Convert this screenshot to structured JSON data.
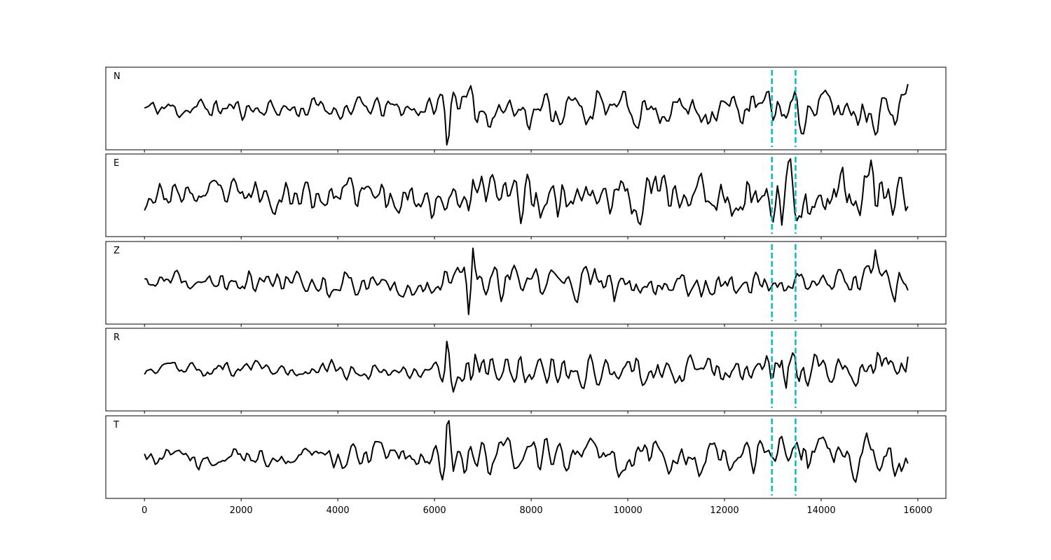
{
  "chart_data": {
    "type": "line",
    "title": "",
    "xlabel": "",
    "ylabel": "",
    "xlim": [
      -800,
      16580
    ],
    "xticks": [
      0,
      2000,
      4000,
      6000,
      8000,
      10000,
      12000,
      14000,
      16000
    ],
    "xtick_labels": [
      "0",
      "2000",
      "4000",
      "6000",
      "8000",
      "10000",
      "12000",
      "14000",
      "16000"
    ],
    "sharex": true,
    "grid": false,
    "legend": "none",
    "line_color": "#000000",
    "marker_color": "#00bfbf",
    "markers": [
      12980,
      13470
    ],
    "panels": [
      {
        "label": "N",
        "seed": 11,
        "noise": [
          [
            0,
            0.22
          ],
          [
            4000,
            0.26
          ],
          [
            6000,
            0.22
          ],
          [
            6700,
            0.42
          ],
          [
            12000,
            0.38
          ],
          [
            13500,
            0.5
          ],
          [
            15800,
            0.5
          ]
        ],
        "features": [
          {
            "x": 6140,
            "a": 0.25,
            "w": 70
          },
          {
            "x": 6270,
            "a": -1.0,
            "w": 45
          },
          {
            "x": 6390,
            "a": 0.55,
            "w": 55
          },
          {
            "x": 6500,
            "a": 0.3,
            "w": 60
          }
        ]
      },
      {
        "label": "E",
        "seed": 23,
        "noise": [
          [
            0,
            0.28
          ],
          [
            5600,
            0.4
          ],
          [
            6100,
            0.55
          ],
          [
            7000,
            0.55
          ],
          [
            12500,
            0.5
          ],
          [
            13500,
            0.7
          ],
          [
            15800,
            0.65
          ]
        ],
        "features": [
          {
            "x": 6270,
            "a": -0.75,
            "w": 50
          },
          {
            "x": 6780,
            "a": 0.9,
            "w": 45
          },
          {
            "x": 13180,
            "a": -0.8,
            "w": 50
          },
          {
            "x": 13360,
            "a": 0.75,
            "w": 45
          },
          {
            "x": 14350,
            "a": 0.65,
            "w": 50
          }
        ]
      },
      {
        "label": "Z",
        "seed": 37,
        "noise": [
          [
            0,
            0.22
          ],
          [
            6000,
            0.3
          ],
          [
            7000,
            0.35
          ],
          [
            12000,
            0.32
          ],
          [
            13500,
            0.3
          ],
          [
            15800,
            0.35
          ]
        ],
        "features": [
          {
            "x": 2920,
            "a": 0.4,
            "w": 45
          },
          {
            "x": 6600,
            "a": 0.55,
            "w": 45
          },
          {
            "x": 6720,
            "a": -0.95,
            "w": 40
          },
          {
            "x": 6790,
            "a": 0.85,
            "w": 45
          },
          {
            "x": 9720,
            "a": -0.65,
            "w": 45
          },
          {
            "x": 15110,
            "a": 0.7,
            "w": 45
          },
          {
            "x": 15540,
            "a": -0.45,
            "w": 45
          }
        ]
      },
      {
        "label": "R",
        "seed": 53,
        "noise": [
          [
            0,
            0.15
          ],
          [
            5800,
            0.2
          ],
          [
            6300,
            0.35
          ],
          [
            12500,
            0.3
          ],
          [
            13500,
            0.42
          ],
          [
            15800,
            0.4
          ]
        ],
        "features": [
          {
            "x": 6270,
            "a": 1.0,
            "w": 45
          },
          {
            "x": 6400,
            "a": -0.4,
            "w": 50
          },
          {
            "x": 6780,
            "a": -0.45,
            "w": 45
          },
          {
            "x": 13260,
            "a": -0.5,
            "w": 45
          }
        ]
      },
      {
        "label": "T",
        "seed": 71,
        "noise": [
          [
            0,
            0.22
          ],
          [
            5000,
            0.3
          ],
          [
            6300,
            0.4
          ],
          [
            12500,
            0.4
          ],
          [
            15800,
            0.42
          ]
        ],
        "features": [
          {
            "x": 6270,
            "a": 1.0,
            "w": 45
          },
          {
            "x": 6400,
            "a": -0.55,
            "w": 50
          },
          {
            "x": 15680,
            "a": -0.55,
            "w": 45
          }
        ]
      }
    ]
  }
}
